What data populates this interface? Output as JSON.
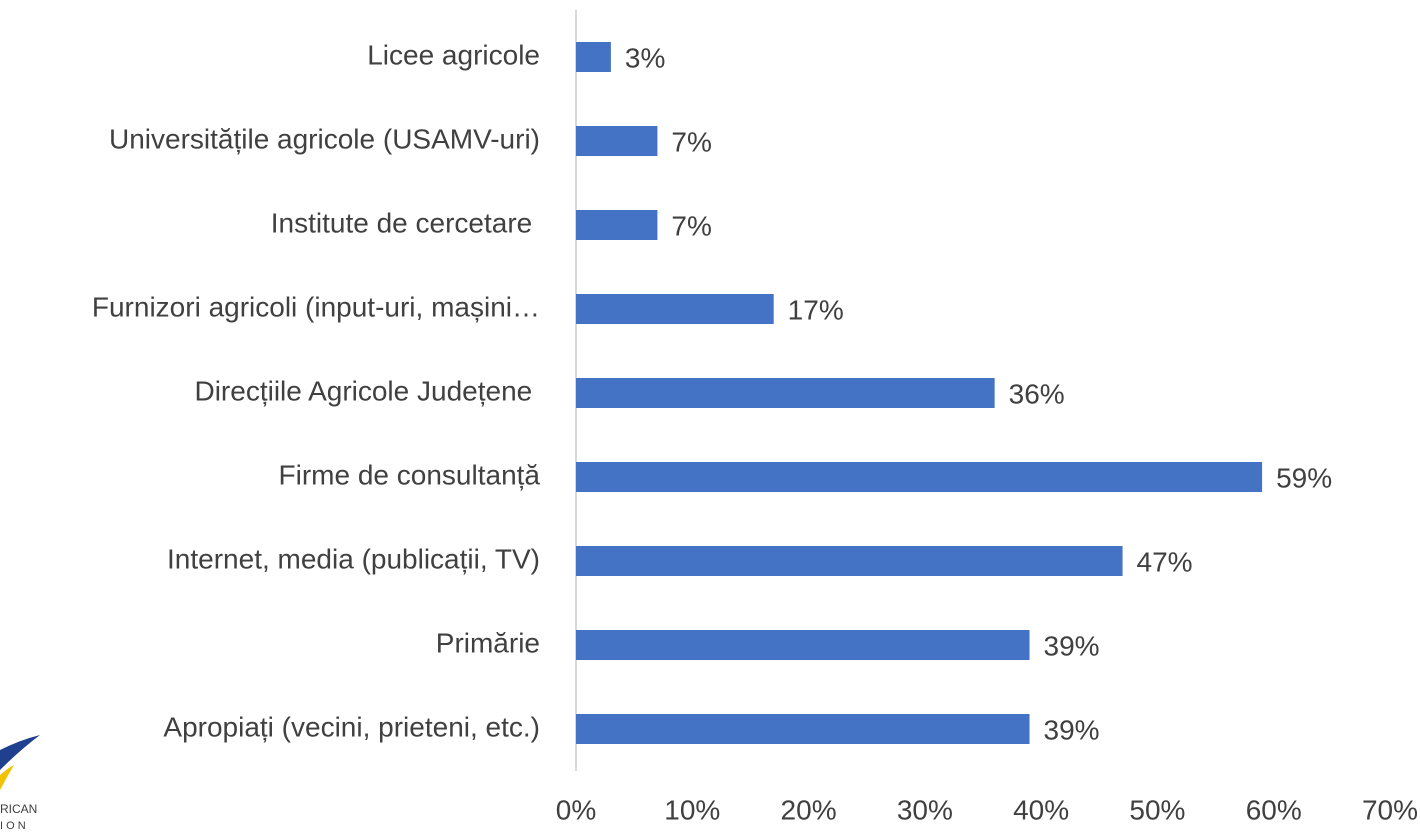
{
  "chart_data": {
    "type": "barh",
    "categories": [
      "Licee agricole",
      "Universitățile agricole (USAMV-uri)",
      "Institute de cercetare ",
      "Furnizori agricoli (input-uri, mașini…",
      "Direcțiile Agricole Județene ",
      "Firme de consultanță",
      "Internet, media (publicații, TV)",
      "Primărie",
      "Apropiați (vecini, prieteni, etc.)"
    ],
    "values": [
      3,
      7,
      7,
      17,
      36,
      59,
      47,
      39,
      39
    ],
    "value_labels": [
      "3%",
      "7%",
      "7%",
      "17%",
      "36%",
      "59%",
      "47%",
      "39%",
      "39%"
    ],
    "color": "#4472c4",
    "xlim": [
      0,
      70
    ],
    "xticks": [
      {
        "value": 0,
        "label": "0%"
      },
      {
        "value": 10,
        "label": "10%"
      },
      {
        "value": 20,
        "label": "20%"
      },
      {
        "value": 30,
        "label": "30%"
      },
      {
        "value": 40,
        "label": "40%"
      },
      {
        "value": 50,
        "label": "50%"
      },
      {
        "value": 60,
        "label": "60%"
      },
      {
        "value": 70,
        "label": "70%"
      }
    ],
    "grid": false
  },
  "logo": {
    "line1": "RICAN",
    "line2": "I O N"
  }
}
